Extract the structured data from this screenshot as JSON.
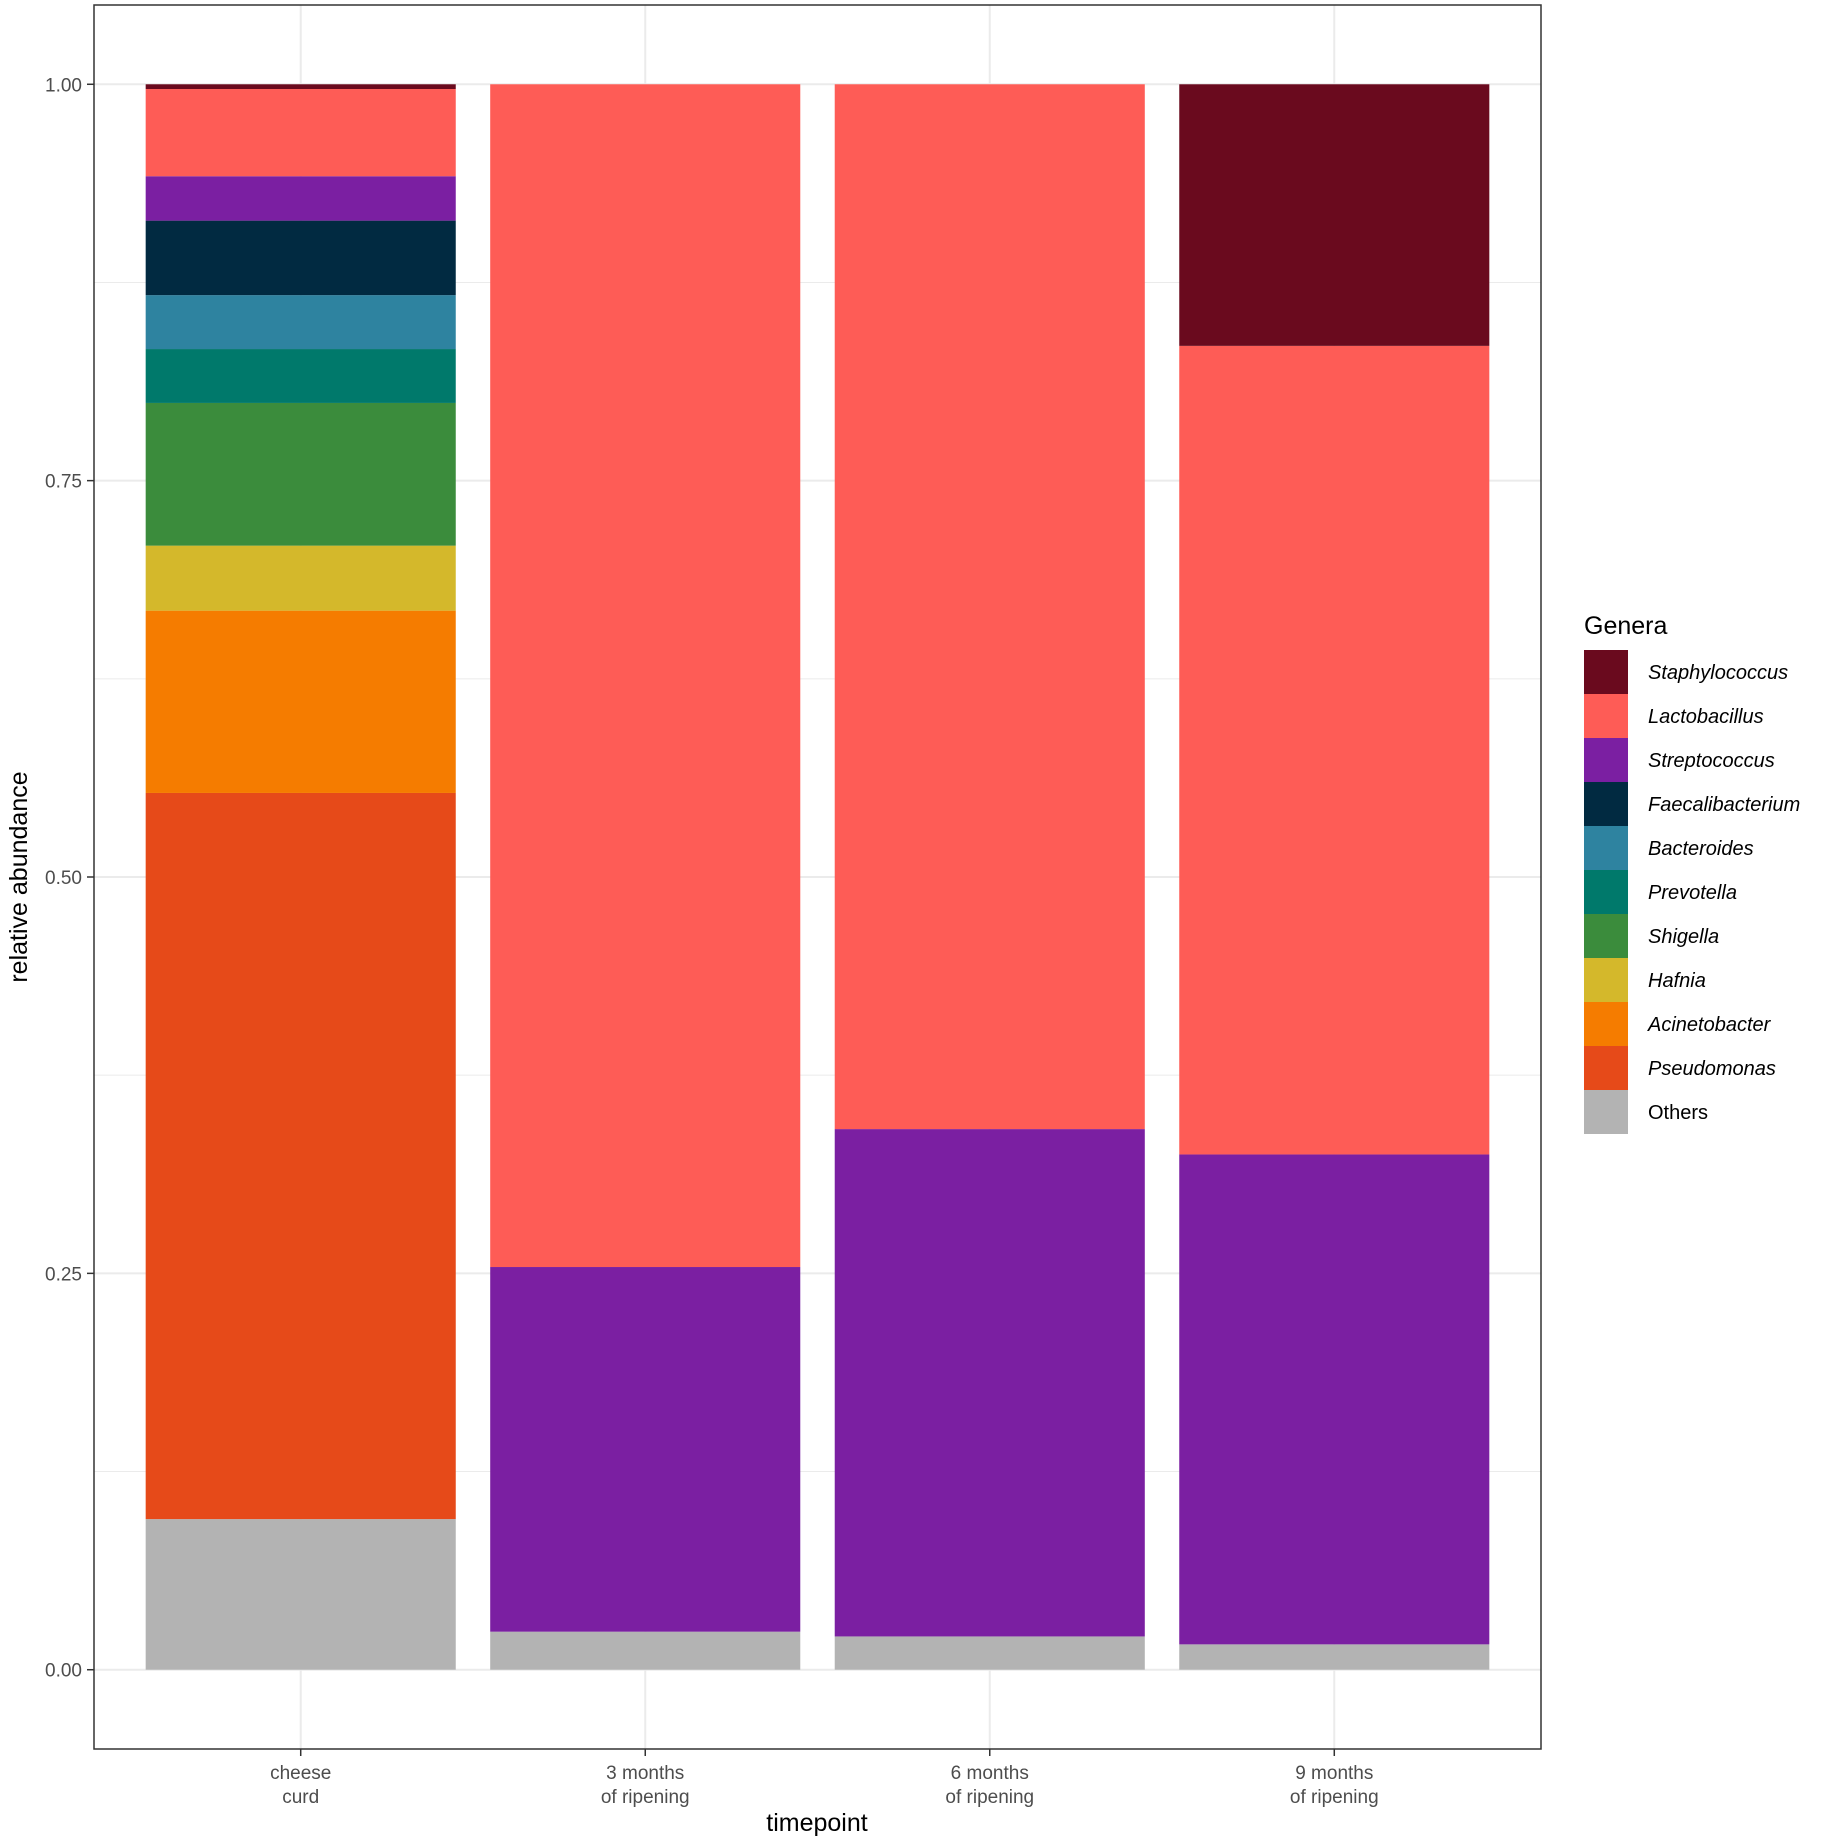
{
  "chart_data": {
    "type": "bar",
    "stacked": true,
    "xlabel": "timepoint",
    "ylabel": "relative abundance",
    "ylim": [
      -0.05,
      1.05
    ],
    "yticks": [
      "0.00",
      "0.25",
      "0.50",
      "0.75",
      "1.00"
    ],
    "grid": true,
    "legend_position": "right",
    "legend_title": "Genera",
    "categories": [
      [
        "cheese",
        "curd"
      ],
      [
        "3 months",
        "of ripening"
      ],
      [
        "6 months",
        "of ripening"
      ],
      [
        "9 months",
        "of ripening"
      ]
    ],
    "series": [
      {
        "name": "Others",
        "italic": false,
        "color": "#b3b3b3",
        "values": [
          0.095,
          0.024,
          0.021,
          0.016
        ]
      },
      {
        "name": "Pseudomonas",
        "italic": true,
        "color": "#e64a19",
        "values": [
          0.458,
          0.0,
          0.0,
          0.0
        ]
      },
      {
        "name": "Acinetobacter",
        "italic": true,
        "color": "#f57c00",
        "values": [
          0.115,
          0.0,
          0.0,
          0.0
        ]
      },
      {
        "name": "Hafnia",
        "italic": true,
        "color": "#d4b82b",
        "values": [
          0.041,
          0.0,
          0.0,
          0.0
        ]
      },
      {
        "name": "Shigella",
        "italic": true,
        "color": "#3b8c3c",
        "values": [
          0.09,
          0.0,
          0.0,
          0.0
        ]
      },
      {
        "name": "Prevotella",
        "italic": true,
        "color": "#00796b",
        "values": [
          0.034,
          0.0,
          0.0,
          0.0
        ]
      },
      {
        "name": "Bacteroides",
        "italic": true,
        "color": "#2e83a0",
        "values": [
          0.034,
          0.0,
          0.0,
          0.0
        ]
      },
      {
        "name": "Faecalibacterium",
        "italic": true,
        "color": "#012a41",
        "values": [
          0.047,
          0.0,
          0.0,
          0.0
        ]
      },
      {
        "name": "Streptococcus",
        "italic": true,
        "color": "#7b1fa2",
        "values": [
          0.028,
          0.23,
          0.32,
          0.309
        ]
      },
      {
        "name": "Lactobacillus",
        "italic": true,
        "color": "#fe5c56",
        "values": [
          0.055,
          0.746,
          0.659,
          0.51
        ]
      },
      {
        "name": "Staphylococcus",
        "italic": true,
        "color": "#6a0a1e",
        "values": [
          0.003,
          0.0,
          0.0,
          0.165
        ]
      }
    ]
  }
}
